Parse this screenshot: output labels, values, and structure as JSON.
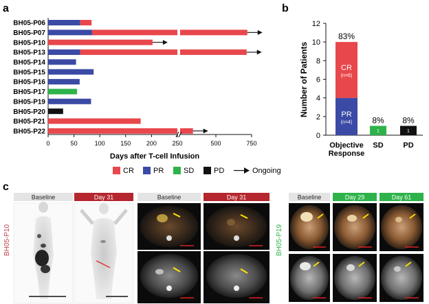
{
  "panels": {
    "a": "a",
    "b": "b",
    "c": "c"
  },
  "legend": {
    "items": [
      {
        "label": "CR",
        "color": "#e8474c"
      },
      {
        "label": "PR",
        "color": "#3b4aa5"
      },
      {
        "label": "SD",
        "color": "#2db34a"
      },
      {
        "label": "PD",
        "color": "#111111"
      }
    ],
    "ongoing_label": "Ongoing"
  },
  "chart_data": [
    {
      "type": "bar",
      "orientation": "horizontal",
      "xlabel": "Days after T-cell Infusion",
      "x_axis_break": [
        250,
        250
      ],
      "x_ticks_left": [
        "0",
        "50",
        "100",
        "150",
        "200",
        "250"
      ],
      "x_ticks_right": [
        "500",
        "750"
      ],
      "colors": {
        "CR": "#e8474c",
        "PR": "#3b4aa5",
        "SD": "#2db34a",
        "PD": "#111111"
      },
      "patients": [
        {
          "id": "BH05-P06",
          "segments": [
            {
              "status": "PR",
              "start": 0,
              "end": 62
            },
            {
              "status": "CR",
              "start": 62,
              "end": 84
            }
          ],
          "ongoing": false
        },
        {
          "id": "BH05-P07",
          "segments": [
            {
              "status": "PR",
              "start": 0,
              "end": 85
            },
            {
              "status": "CR",
              "start": 85,
              "end": 720
            }
          ],
          "ongoing": true
        },
        {
          "id": "BH05-P10",
          "segments": [
            {
              "status": "CR",
              "start": 0,
              "end": 202
            }
          ],
          "ongoing": true
        },
        {
          "id": "BH05-P13",
          "segments": [
            {
              "status": "PR",
              "start": 0,
              "end": 62
            },
            {
              "status": "CR",
              "start": 62,
              "end": 715
            }
          ],
          "ongoing": true
        },
        {
          "id": "BH05-P14",
          "segments": [
            {
              "status": "PR",
              "start": 0,
              "end": 54
            }
          ],
          "ongoing": false
        },
        {
          "id": "BH05-P15",
          "segments": [
            {
              "status": "PR",
              "start": 0,
              "end": 88
            }
          ],
          "ongoing": false
        },
        {
          "id": "BH05-P16",
          "segments": [
            {
              "status": "PR",
              "start": 0,
              "end": 61
            }
          ],
          "ongoing": false
        },
        {
          "id": "BH05-P17",
          "segments": [
            {
              "status": "SD",
              "start": 0,
              "end": 56
            }
          ],
          "ongoing": false
        },
        {
          "id": "BH05-P19",
          "segments": [
            {
              "status": "PR",
              "start": 0,
              "end": 83
            }
          ],
          "ongoing": false
        },
        {
          "id": "BH05-P20",
          "segments": [
            {
              "status": "PD",
              "start": 0,
              "end": 29
            }
          ],
          "ongoing": false
        },
        {
          "id": "BH05-P21",
          "segments": [
            {
              "status": "CR",
              "start": 0,
              "end": 179
            }
          ],
          "ongoing": false
        },
        {
          "id": "BH05-P22",
          "segments": [
            {
              "status": "CR",
              "start": 0,
              "end": 340
            }
          ],
          "ongoing": true
        }
      ]
    },
    {
      "type": "bar",
      "stacked": true,
      "ylabel": "Number of Patients",
      "ylim": [
        0,
        12
      ],
      "yticks": [
        "0",
        "2",
        "4",
        "6",
        "8",
        "10",
        "12"
      ],
      "categories": [
        "Objective\nResponse",
        "SD",
        "PD"
      ],
      "category_lines": [
        [
          "Objective",
          "Response"
        ],
        [
          "SD"
        ],
        [
          "PD"
        ]
      ],
      "bars": [
        {
          "category": "Objective Response",
          "total_label": "83%",
          "segments": [
            {
              "name": "PR",
              "value": 4,
              "label": "PR",
              "sublabel": "(n=4)",
              "color": "#3b4aa5"
            },
            {
              "name": "CR",
              "value": 6,
              "label": "CR",
              "sublabel": "(n=6)",
              "color": "#e8474c"
            }
          ]
        },
        {
          "category": "SD",
          "total_label": "8%",
          "segments": [
            {
              "name": "SD",
              "value": 1,
              "label": "1",
              "sublabel": "",
              "color": "#2db34a"
            }
          ]
        },
        {
          "category": "PD",
          "total_label": "8%",
          "segments": [
            {
              "name": "PD",
              "value": 1,
              "label": "1",
              "sublabel": "",
              "color": "#111111"
            }
          ]
        }
      ]
    }
  ],
  "imaging": {
    "left_group": {
      "patient": "BH05-P10",
      "patient_color": "#c0404a",
      "labels": [
        {
          "text": "Baseline",
          "style": "gray"
        },
        {
          "text": "Day 31",
          "style": "red"
        },
        {
          "text": "Baseline",
          "style": "gray"
        },
        {
          "text": "Day 31",
          "style": "red"
        }
      ]
    },
    "right_group": {
      "patient": "BH05-P19",
      "patient_color": "#2db34a",
      "labels": [
        {
          "text": "Baseline",
          "style": "gray"
        },
        {
          "text": "Day 29",
          "style": "green"
        },
        {
          "text": "Day 61",
          "style": "green"
        }
      ]
    }
  }
}
